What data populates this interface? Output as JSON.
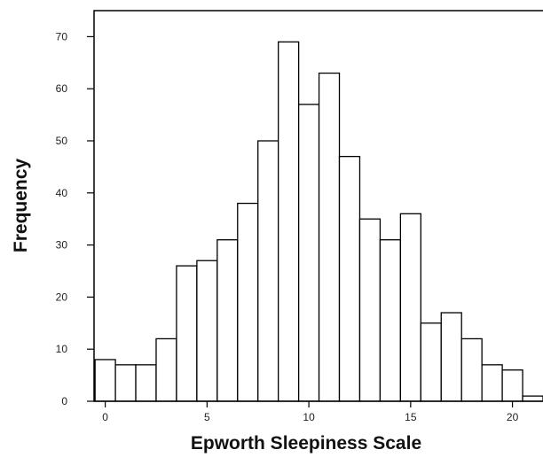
{
  "chart_data": {
    "type": "bar",
    "xlabel": "Epworth Sleepiness Scale",
    "ylabel": "Frequency",
    "categories": [
      "0",
      "1",
      "2",
      "3",
      "4",
      "5",
      "6",
      "7",
      "8",
      "9",
      "10",
      "11",
      "12",
      "13",
      "14",
      "15",
      "16",
      "17",
      "18",
      "19",
      "20",
      "21"
    ],
    "values": [
      8,
      7,
      7,
      12,
      26,
      27,
      31,
      38,
      50,
      69,
      57,
      63,
      47,
      35,
      31,
      36,
      15,
      17,
      12,
      7,
      6,
      1
    ],
    "ylim": [
      0,
      75
    ],
    "xlim": [
      -0.55,
      21.5
    ],
    "x_ticks": [
      0,
      5,
      10,
      15,
      20
    ],
    "y_ticks": [
      0,
      10,
      20,
      30,
      40,
      50,
      60,
      70
    ],
    "grid": false,
    "legend": "none",
    "colors": {
      "bar_fill": "#ffffff",
      "bar_stroke": "#000000"
    }
  }
}
